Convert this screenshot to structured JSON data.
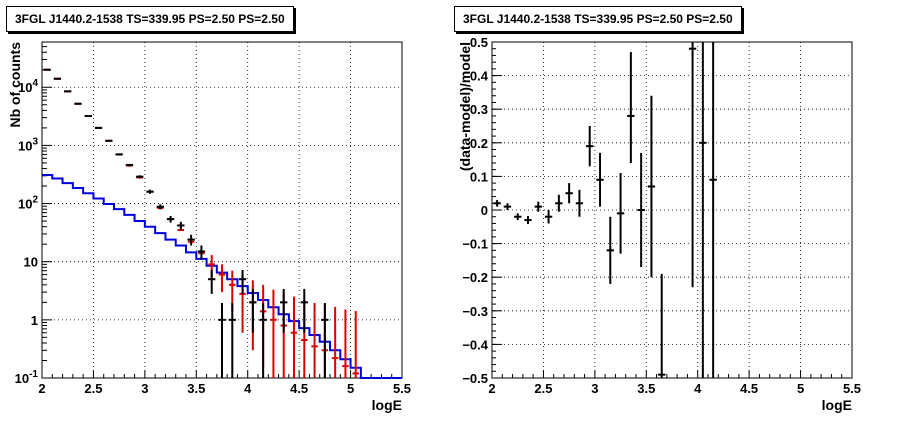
{
  "panels": [
    {
      "title": "3FGL J1440.2-1538 TS=339.95 PS=2.50 PS=2.50",
      "xlabel": "logE",
      "ylabel": "Nb of counts"
    },
    {
      "title": "3FGL J1440.2-1538 TS=339.95 PS=2.50 PS=2.50",
      "xlabel": "logE",
      "ylabel": "(data-model)/model"
    }
  ],
  "chart_data": [
    {
      "type": "line",
      "title": "3FGL J1440.2-1538 TS=339.95 PS=2.50 PS=2.50",
      "xlabel": "logE",
      "ylabel": "Nb of counts",
      "xlim": [
        2,
        5.5
      ],
      "ylim": [
        0.1,
        60000
      ],
      "yscale": "log",
      "grid": true,
      "x_ticks": [
        "2",
        "2.5",
        "3",
        "3.5",
        "4",
        "4.5",
        "5",
        "5.5"
      ],
      "y_ticks": [
        "10^-1",
        "1",
        "10",
        "10^2",
        "10^3",
        "10^4"
      ],
      "colors": {
        "data": "#000000",
        "model": "#dd0000",
        "background": "#0000dd"
      },
      "series": [
        {
          "role": "data",
          "bin_width": 0.1,
          "x": [
            2.05,
            2.15,
            2.25,
            2.35,
            2.45,
            2.55,
            2.65,
            2.75,
            2.85,
            2.95,
            3.05,
            3.15,
            3.25,
            3.35,
            3.45,
            3.55,
            3.65,
            3.75,
            3.85,
            3.95,
            4.05,
            4.15,
            4.35,
            4.55,
            4.75
          ],
          "y": [
            20000,
            14000,
            8500,
            5200,
            3200,
            2000,
            1200,
            700,
            460,
            290,
            160,
            88,
            54,
            42,
            24,
            15,
            5,
            1,
            1,
            5,
            2,
            1,
            2,
            2,
            1
          ],
          "err": [
            141,
            118,
            92,
            72,
            57,
            45,
            35,
            26,
            21,
            17,
            13,
            9,
            7,
            6.5,
            5,
            4,
            2.2,
            0.95,
            0.95,
            2.2,
            1.4,
            0.95,
            1.4,
            1.4,
            0.95
          ]
        },
        {
          "role": "model",
          "bin_width": 0.1,
          "x": [
            2.05,
            2.15,
            2.25,
            2.35,
            2.45,
            2.55,
            2.65,
            2.75,
            2.85,
            2.95,
            3.05,
            3.15,
            3.25,
            3.35,
            3.45,
            3.55,
            3.65,
            3.75,
            3.85,
            3.95,
            4.05,
            4.15,
            4.25,
            4.35,
            4.45,
            4.55,
            4.65,
            4.75,
            4.85,
            4.95,
            5.05
          ],
          "y": [
            20000,
            14000,
            8500,
            5200,
            3200,
            2000,
            1200,
            700,
            450,
            280,
            160,
            84,
            54,
            35,
            22,
            14,
            9,
            6,
            4,
            2.8,
            2.0,
            1.4,
            1.0,
            0.8,
            0.6,
            0.45,
            0.35,
            0.3,
            0.22,
            0.16,
            0.12
          ],
          "err_lo": [
            0,
            0,
            0,
            0,
            0,
            0,
            0,
            0,
            0,
            0,
            0,
            0,
            0,
            0,
            0,
            0,
            4,
            3,
            2.6,
            2.2,
            1.7,
            1.25,
            0.92,
            0.75,
            0.58,
            0.44,
            0.35,
            0.3,
            0.22,
            0.16,
            0.12
          ],
          "err_hi": [
            0,
            0,
            0,
            0,
            0,
            0,
            0,
            0,
            0,
            0,
            0,
            0,
            0,
            0,
            0,
            0,
            4,
            3,
            3,
            3.2,
            2.8,
            2.6,
            2.3,
            2.1,
            1.9,
            1.75,
            1.6,
            1.55,
            1.45,
            1.35,
            1.3
          ]
        },
        {
          "role": "background",
          "step": true,
          "edges": [
            2.0,
            2.1,
            2.2,
            2.3,
            2.4,
            2.5,
            2.6,
            2.7,
            2.8,
            2.9,
            3.0,
            3.1,
            3.2,
            3.3,
            3.4,
            3.5,
            3.6,
            3.7,
            3.8,
            3.9,
            4.0,
            4.1,
            4.2,
            4.3,
            4.4,
            4.5,
            4.6,
            4.7,
            4.8,
            4.9,
            5.0,
            5.1,
            5.2,
            5.3,
            5.4,
            5.5
          ],
          "y": [
            310,
            270,
            225,
            185,
            150,
            122,
            98,
            80,
            64,
            50,
            40,
            31,
            24,
            19,
            14.5,
            11.2,
            8.5,
            6.5,
            5.0,
            3.8,
            2.9,
            2.2,
            1.65,
            1.25,
            0.95,
            0.72,
            0.55,
            0.42,
            0.3,
            0.21,
            0.15,
            0.1,
            0.1,
            0.1,
            0.1
          ]
        }
      ]
    },
    {
      "type": "scatter",
      "title": "3FGL J1440.2-1538 TS=339.95 PS=2.50 PS=2.50",
      "xlabel": "logE",
      "ylabel": "(data-model)/model",
      "xlim": [
        2,
        5.5
      ],
      "ylim": [
        -0.5,
        0.5
      ],
      "grid": true,
      "x_ticks": [
        "2",
        "2.5",
        "3",
        "3.5",
        "4",
        "4.5",
        "5",
        "5.5"
      ],
      "y_ticks": [
        "-0.5",
        "-0.4",
        "-0.3",
        "-0.2",
        "-0.1",
        "0",
        "0.1",
        "0.2",
        "0.3",
        "0.4",
        "0.5"
      ],
      "colors": {
        "points": "#000000"
      },
      "series": [
        {
          "bin_width": 0.1,
          "x": [
            2.05,
            2.15,
            2.25,
            2.35,
            2.45,
            2.55,
            2.65,
            2.75,
            2.85,
            2.95,
            3.05,
            3.15,
            3.25,
            3.35,
            3.45,
            3.55,
            3.65,
            3.95,
            4.05,
            4.15
          ],
          "y": [
            0.02,
            0.01,
            -0.02,
            -0.03,
            0.01,
            -0.02,
            0.02,
            0.05,
            0.02,
            0.19,
            0.09,
            -0.12,
            -0.01,
            0.28,
            0.0,
            0.07,
            -0.49,
            0.48,
            0.2,
            0.09
          ],
          "err_lo": [
            0.01,
            0.01,
            0.01,
            0.012,
            0.015,
            0.02,
            0.025,
            0.03,
            0.04,
            0.06,
            0.08,
            0.1,
            0.12,
            0.14,
            0.17,
            0.27,
            0.5,
            0.71,
            0.7,
            0.6
          ],
          "err_hi": [
            0.01,
            0.01,
            0.01,
            0.012,
            0.015,
            0.02,
            0.025,
            0.03,
            0.04,
            0.06,
            0.08,
            0.1,
            0.12,
            0.19,
            0.17,
            0.27,
            0.3,
            0.3,
            0.3,
            0.41
          ]
        }
      ]
    }
  ]
}
